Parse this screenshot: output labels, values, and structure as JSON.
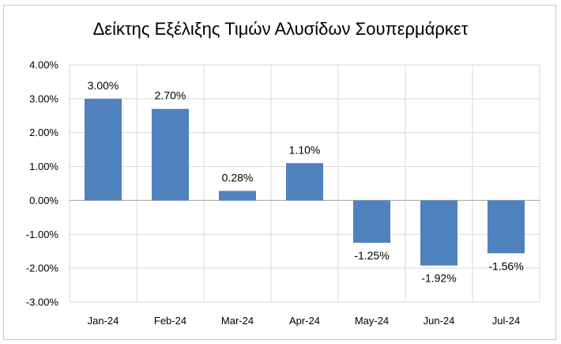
{
  "chart_data": {
    "type": "bar",
    "title": "Δείκτης Εξέλιξης Τιμών Αλυσίδων Σουπερμάρκετ",
    "xlabel": "",
    "ylabel": "",
    "categories": [
      "Jan-24",
      "Feb-24",
      "Mar-24",
      "Apr-24",
      "May-24",
      "Jun-24",
      "Jul-24"
    ],
    "values": [
      3.0,
      2.7,
      0.28,
      1.1,
      -1.25,
      -1.92,
      -1.56
    ],
    "data_labels": [
      "3.00%",
      "2.70%",
      "0.28%",
      "1.10%",
      "-1.25%",
      "-1.92%",
      "-1.56%"
    ],
    "ylim": [
      -3,
      4
    ],
    "yticks": [
      4,
      3,
      2,
      1,
      0,
      -1,
      -2,
      -3
    ],
    "ytick_labels": [
      "4.00%",
      "3.00%",
      "2.00%",
      "1.00%",
      "0.00%",
      "-1.00%",
      "-2.00%",
      "-3.00%"
    ],
    "grid": true,
    "bar_color": "#4f81bd",
    "grid_color": "#d9d9d9",
    "legend": "none"
  }
}
